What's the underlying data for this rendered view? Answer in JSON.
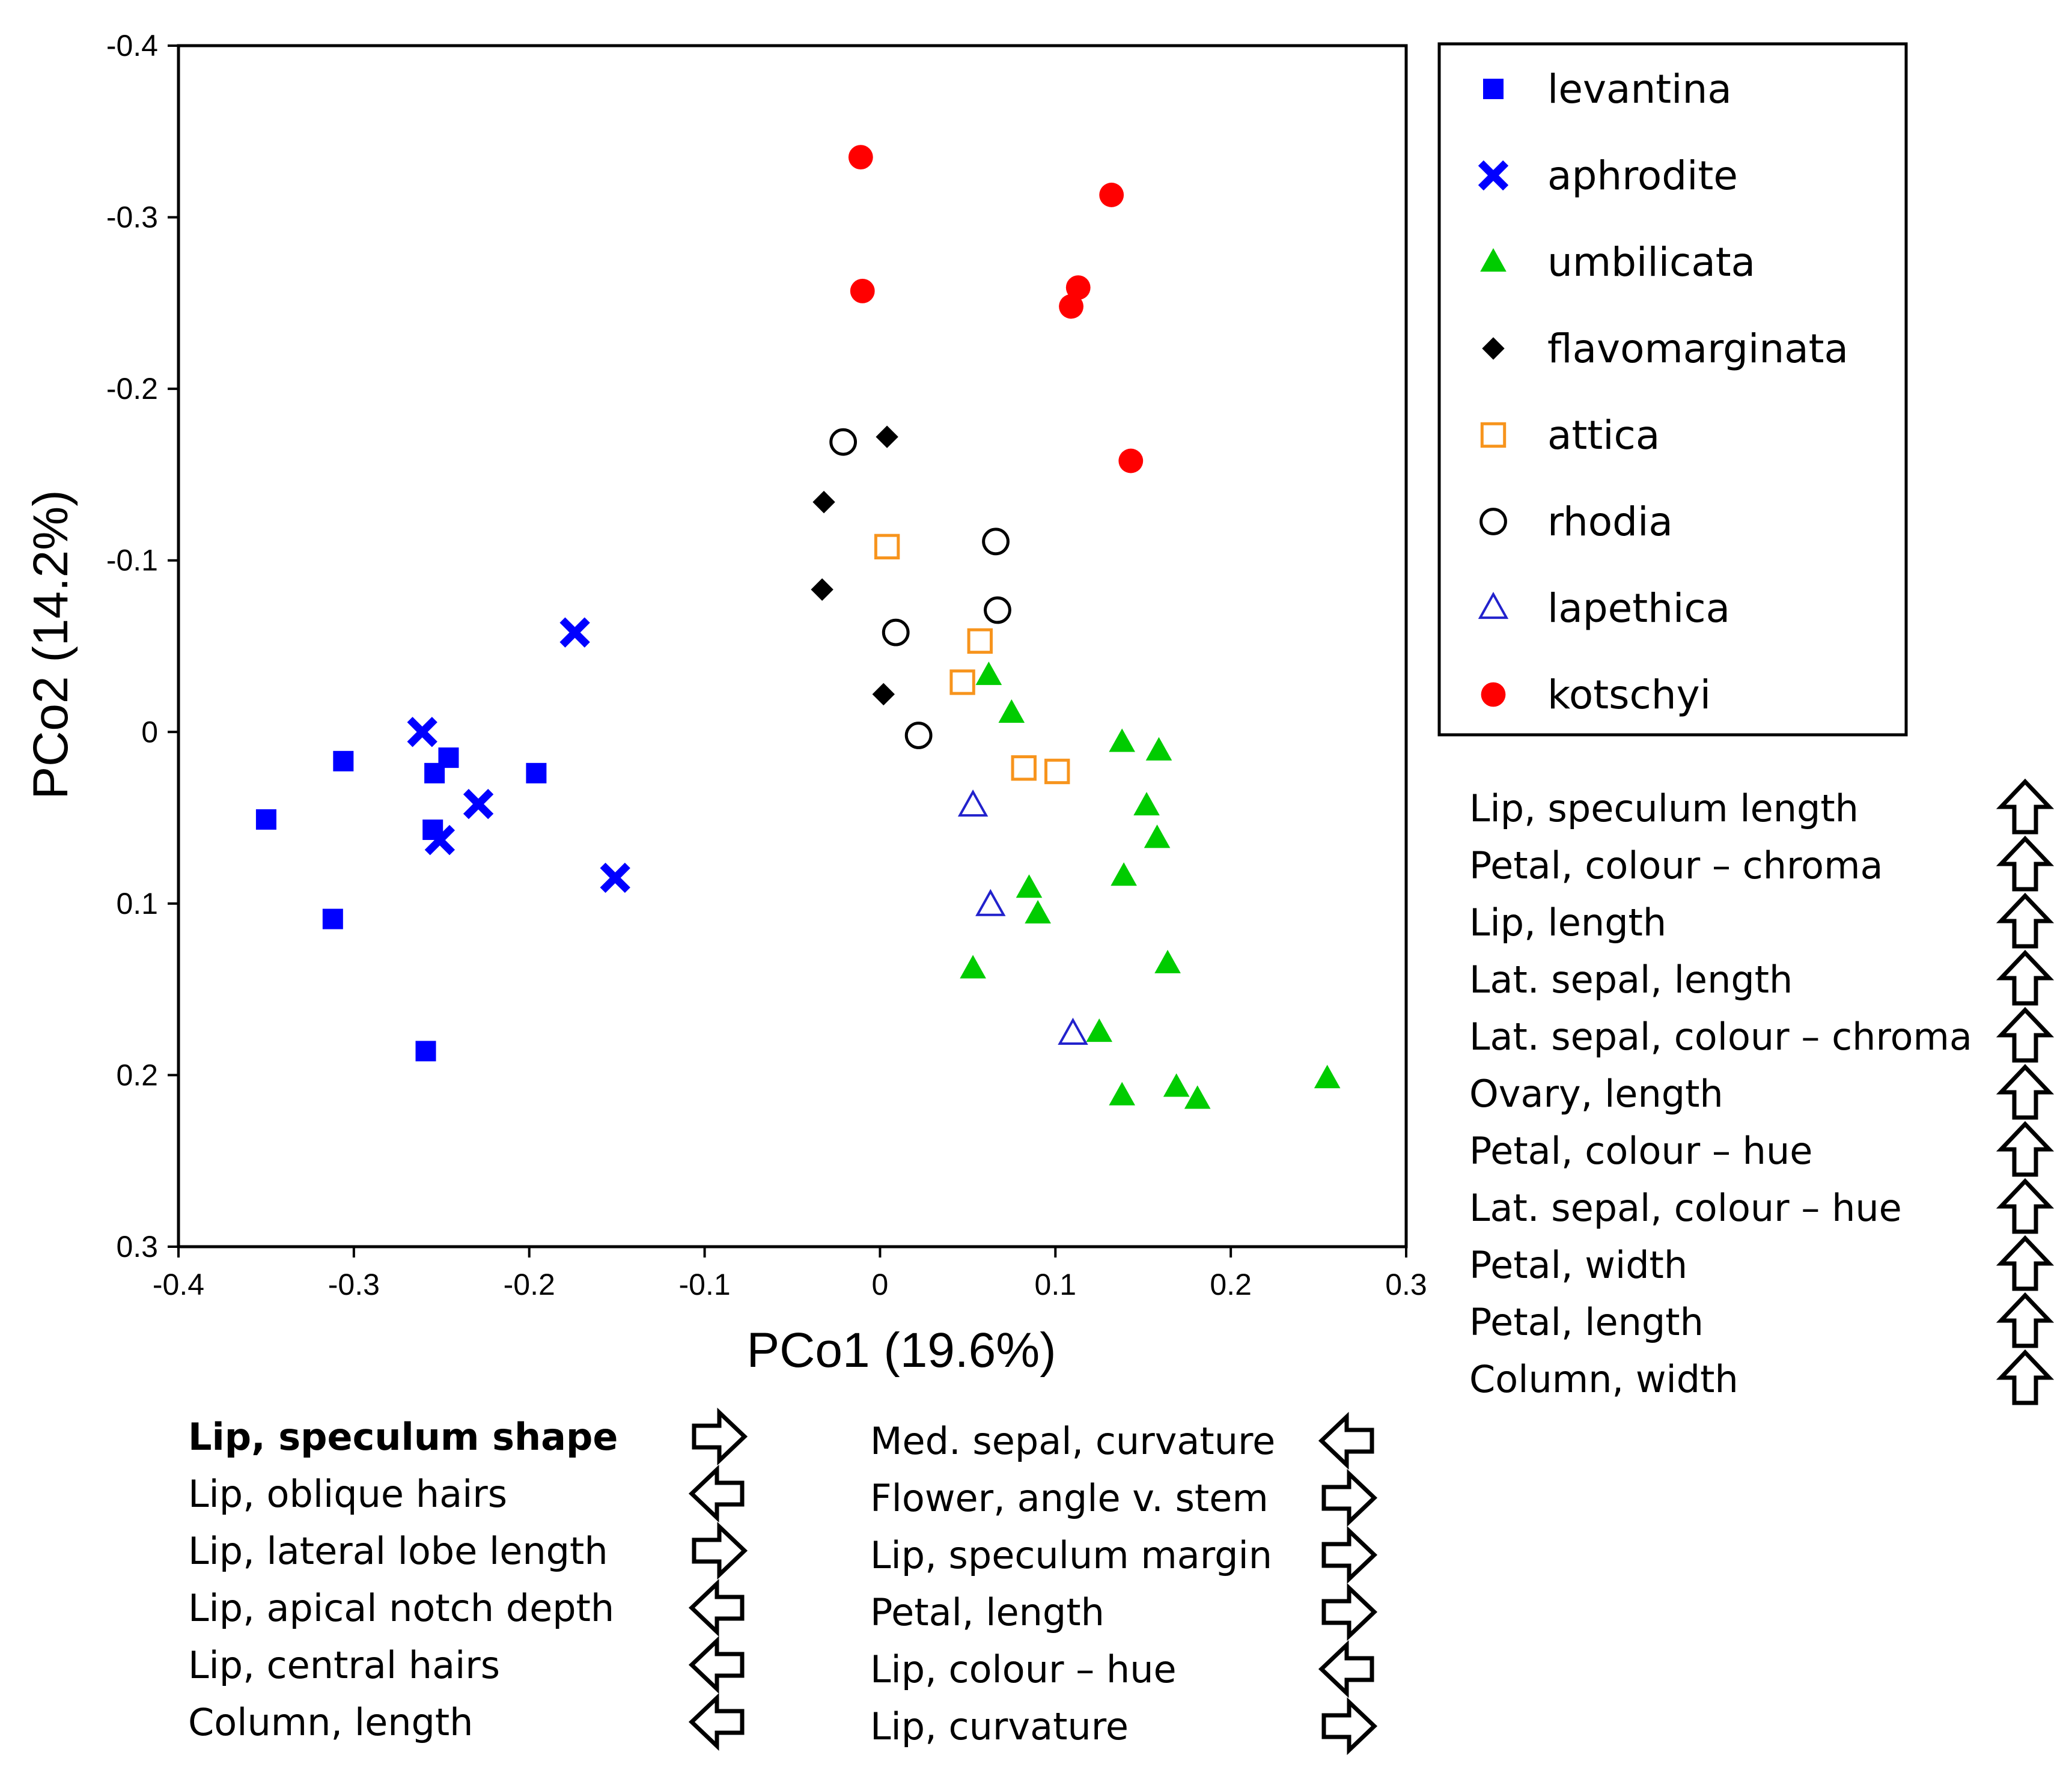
{
  "chart_data": {
    "type": "scatter",
    "xlabel": "PCo1 (19.6%)",
    "ylabel": "PCo2 (14.2%)",
    "xlim": [
      -0.4,
      0.3
    ],
    "ylim": [
      0.3,
      -0.4
    ],
    "y_inverted": true,
    "x_ticks": [
      -0.4,
      -0.3,
      -0.2,
      -0.1,
      0,
      0.1,
      0.2,
      0.3
    ],
    "x_tick_labels": [
      "-0.4",
      "-0.3",
      "-0.2",
      "-0.1",
      "0",
      "0.1",
      "0.2",
      "0.3"
    ],
    "y_ticks": [
      -0.4,
      -0.3,
      -0.2,
      -0.1,
      0,
      0.1,
      0.2,
      0.3
    ],
    "y_tick_labels": [
      "-0.4",
      "-0.3",
      "-0.2",
      "-0.1",
      "0",
      "0.1",
      "0.2",
      "0.3"
    ],
    "grid": false,
    "legend_position": "right",
    "series": [
      {
        "name": "levantina",
        "marker": "square-filled",
        "color": "#0000ff",
        "points": [
          [
            -0.35,
            0.051
          ],
          [
            -0.312,
            0.109
          ],
          [
            -0.306,
            0.017
          ],
          [
            -0.259,
            0.186
          ],
          [
            -0.255,
            0.057
          ],
          [
            -0.254,
            0.024
          ],
          [
            -0.246,
            0.015
          ],
          [
            -0.196,
            0.024
          ]
        ]
      },
      {
        "name": "aphrodite",
        "marker": "x-bold",
        "color": "#0000ff",
        "points": [
          [
            -0.174,
            -0.058
          ],
          [
            -0.261,
            0.0
          ],
          [
            -0.229,
            0.042
          ],
          [
            -0.251,
            0.063
          ],
          [
            -0.151,
            0.085
          ]
        ]
      },
      {
        "name": "umbilicata",
        "marker": "triangle-filled",
        "color": "#00cc00",
        "points": [
          [
            0.062,
            -0.033
          ],
          [
            0.075,
            -0.011
          ],
          [
            0.138,
            0.006
          ],
          [
            0.159,
            0.011
          ],
          [
            0.152,
            0.043
          ],
          [
            0.158,
            0.062
          ],
          [
            0.139,
            0.084
          ],
          [
            0.085,
            0.091
          ],
          [
            0.09,
            0.106
          ],
          [
            0.053,
            0.138
          ],
          [
            0.164,
            0.135
          ],
          [
            0.125,
            0.175
          ],
          [
            0.138,
            0.212
          ],
          [
            0.169,
            0.207
          ],
          [
            0.181,
            0.214
          ],
          [
            0.255,
            0.202
          ]
        ]
      },
      {
        "name": "flavomarginata",
        "marker": "diamond-filled",
        "color": "#000000",
        "points": [
          [
            0.004,
            -0.172
          ],
          [
            -0.032,
            -0.134
          ],
          [
            -0.033,
            -0.083
          ],
          [
            0.002,
            -0.022
          ]
        ]
      },
      {
        "name": "attica",
        "marker": "square-open",
        "color": "#f7941d",
        "points": [
          [
            0.004,
            -0.108
          ],
          [
            0.057,
            -0.053
          ],
          [
            0.047,
            -0.029
          ],
          [
            0.082,
            0.021
          ],
          [
            0.101,
            0.023
          ]
        ]
      },
      {
        "name": "rhodia",
        "marker": "circle-open",
        "color": "#000000",
        "points": [
          [
            -0.021,
            -0.169
          ],
          [
            0.066,
            -0.111
          ],
          [
            0.067,
            -0.071
          ],
          [
            0.009,
            -0.058
          ],
          [
            0.022,
            0.002
          ]
        ]
      },
      {
        "name": "lapethica",
        "marker": "triangle-open",
        "color": "#2222cc",
        "points": [
          [
            0.053,
            0.043
          ],
          [
            0.063,
            0.101
          ],
          [
            0.11,
            0.176
          ]
        ]
      },
      {
        "name": "kotschyi",
        "marker": "circle-filled",
        "color": "#ff0000",
        "points": [
          [
            -0.011,
            -0.335
          ],
          [
            -0.01,
            -0.257
          ],
          [
            0.132,
            -0.313
          ],
          [
            0.113,
            -0.259
          ],
          [
            0.109,
            -0.248
          ],
          [
            0.143,
            -0.158
          ]
        ]
      }
    ]
  },
  "legend": {
    "entries": [
      "levantina",
      "aphrodite",
      "umbilicata",
      "flavomarginata",
      "attica",
      "rhodia",
      "lapethica",
      "kotschyi"
    ]
  },
  "variables_y": {
    "items": [
      {
        "label": "Lip, speculum length",
        "arrow": "up"
      },
      {
        "label": "Petal, colour – chroma",
        "arrow": "up"
      },
      {
        "label": "Lip, length",
        "arrow": "up"
      },
      {
        "label": "Lat. sepal, length",
        "arrow": "up"
      },
      {
        "label": "Lat. sepal, colour – chroma",
        "arrow": "up"
      },
      {
        "label": "Ovary, length",
        "arrow": "up"
      },
      {
        "label": "Petal, colour – hue",
        "arrow": "up"
      },
      {
        "label": "Lat. sepal, colour – hue",
        "arrow": "up"
      },
      {
        "label": "Petal, width",
        "arrow": "up"
      },
      {
        "label": "Petal, length",
        "arrow": "up"
      },
      {
        "label": "Column, width",
        "arrow": "up"
      }
    ]
  },
  "variables_x_left": {
    "items": [
      {
        "label": "Lip, speculum shape",
        "arrow": "right",
        "bold": true
      },
      {
        "label": "Lip, oblique hairs",
        "arrow": "left",
        "bold": false
      },
      {
        "label": "Lip, lateral lobe length",
        "arrow": "right",
        "bold": false
      },
      {
        "label": "Lip, apical notch depth",
        "arrow": "left",
        "bold": false
      },
      {
        "label": "Lip, central hairs",
        "arrow": "left",
        "bold": false
      },
      {
        "label": "Column, length",
        "arrow": "left",
        "bold": false
      }
    ]
  },
  "variables_x_right": {
    "items": [
      {
        "label": "Med. sepal, curvature",
        "arrow": "left",
        "bold": false
      },
      {
        "label": "Flower, angle v. stem",
        "arrow": "right",
        "bold": false
      },
      {
        "label": "Lip, speculum margin",
        "arrow": "right",
        "bold": false
      },
      {
        "label": "Petal, length",
        "arrow": "right",
        "bold": false
      },
      {
        "label": "Lip, colour – hue",
        "arrow": "left",
        "bold": false
      },
      {
        "label": "Lip, curvature",
        "arrow": "right",
        "bold": false
      }
    ]
  }
}
